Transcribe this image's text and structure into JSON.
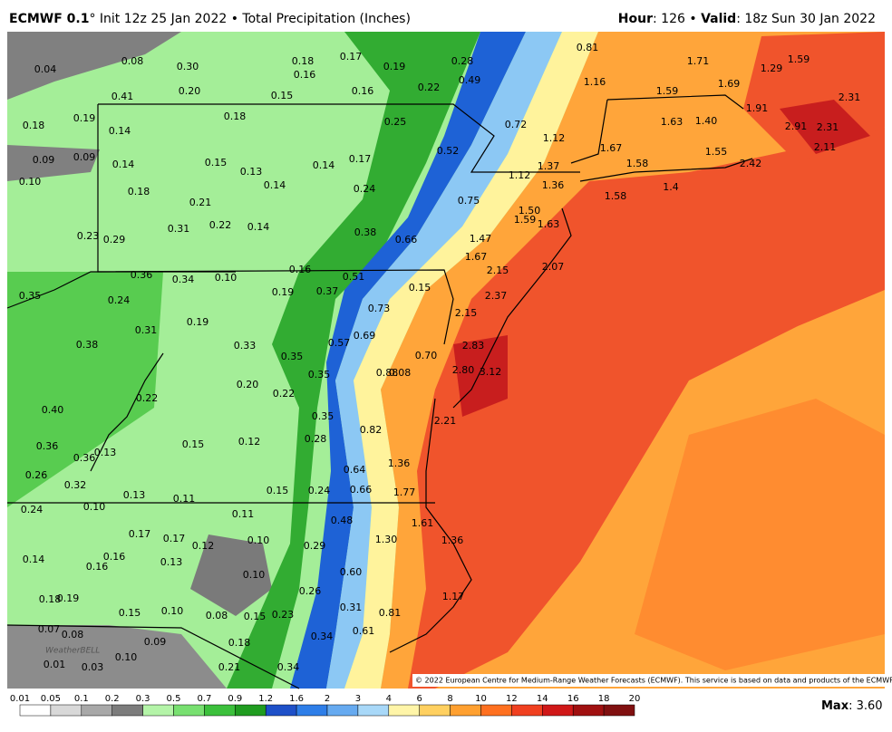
{
  "header": {
    "model": "ECMWF 0.1",
    "info": "° Init 12z 25 Jan 2022 • Total Precipitation (Inches)",
    "hour_label": "Hour",
    "hour_text": ": 126 • ",
    "valid_label": "Valid",
    "valid_text": ": 18z Sun 30 Jan 2022"
  },
  "map": {
    "watermark": "WeatherBELL",
    "copyright": "© 2022 European Centre for Medium-Range Weather Forecasts (ECMWF). This service is based on data and products of the ECMWF.",
    "labels": [
      "0.04",
      "0.08",
      "0.30",
      "0.18",
      "0.17",
      "0.19",
      "0.28",
      "0.81",
      "0.16",
      "0.49",
      "1.71",
      "1.29",
      "1.59",
      "0.41",
      "0.20",
      "0.15",
      "0.16",
      "0.22",
      "1.16",
      "1.59",
      "1.69",
      "2.31",
      "0.18",
      "0.19",
      "0.18",
      "0.25",
      "0.72",
      "1.63",
      "1.40",
      "1.91",
      "2.91",
      "2.31",
      "0.14",
      "1.12",
      "1.67",
      "2.11",
      "0.09",
      "0.09",
      "0.14",
      "0.15",
      "0.13",
      "0.14",
      "0.17",
      "0.52",
      "1.37",
      "1.55",
      "1.58",
      "2.42",
      "0.10",
      "0.14",
      "0.18",
      "0.24",
      "1.12",
      "1.36",
      "1.4",
      "0.21",
      "0.75",
      "1.58",
      "1.50",
      "0.31",
      "0.22",
      "0.14",
      "0.38",
      "1.59",
      "1.63",
      "0.23",
      "0.29",
      "0.66",
      "1.47",
      "1.67",
      "2.15",
      "2.07",
      "0.16",
      "0.36",
      "0.34",
      "0.10",
      "0.51",
      "0.37",
      "0.19",
      "0.15",
      "2.37",
      "0.35",
      "0.24",
      "0.73",
      "2.15",
      "0.19",
      "0.31",
      "0.57",
      "0.69",
      "2.83",
      "0.38",
      "0.33",
      "0.35",
      "0.70",
      "0.35",
      "0.88",
      "0.08",
      "2.80",
      "3.12",
      "0.20",
      "0.22",
      "0.22",
      "0.40",
      "0.35",
      "2.21",
      "0.82",
      "0.28",
      "0.15",
      "0.12",
      "0.36",
      "0.36",
      "0.13",
      "1.36",
      "0.64",
      "0.26",
      "0.32",
      "0.66",
      "1.77",
      "0.13",
      "0.11",
      "0.15",
      "0.24",
      "0.24",
      "0.10",
      "0.11",
      "0.48",
      "1.61",
      "0.17",
      "0.17",
      "0.10",
      "1.30",
      "1.36",
      "0.12",
      "0.29",
      "0.14",
      "0.16",
      "0.16",
      "0.13",
      "0.10",
      "0.60",
      "0.26",
      "0.18",
      "0.19",
      "1.17",
      "0.15",
      "0.10",
      "0.31",
      "0.81",
      "0.08",
      "0.15",
      "0.23",
      "0.07",
      "0.08",
      "0.61",
      "0.34",
      "0.09",
      "0.18",
      "0.01",
      "0.03",
      "0.10",
      "0.21",
      "0.34"
    ]
  },
  "legend": {
    "ticks": [
      "0.01",
      "0.05",
      "0.1",
      "0.2",
      "0.3",
      "0.5",
      "0.7",
      "0.9",
      "1.2",
      "1.6",
      "2",
      "3",
      "4",
      "6",
      "8",
      "10",
      "12",
      "14",
      "16",
      "18",
      "20"
    ],
    "max_label": "Max",
    "max_value": ": 3.60"
  }
}
